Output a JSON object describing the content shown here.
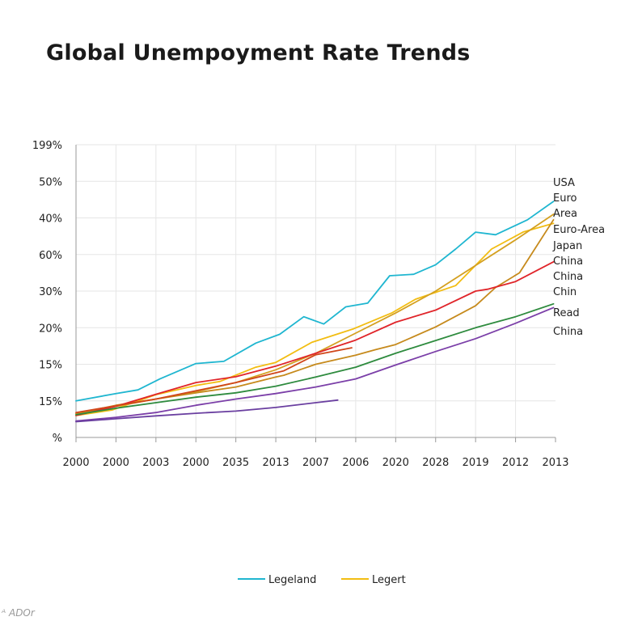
{
  "chart_data": {
    "type": "line",
    "title": "Global Unempoyment Rate Trends",
    "xlabel": "",
    "ylabel": "",
    "x_tick_labels": [
      "2000",
      "2000",
      "2003",
      "2000",
      "2035",
      "2013",
      "2007",
      "2006",
      "2020",
      "2028",
      "2019",
      "2012",
      "2013"
    ],
    "y_tick_labels": [
      "%",
      "15%",
      "15%",
      "20%",
      "30%",
      "60%",
      "40%",
      "50%",
      "199%"
    ],
    "grid": true,
    "legend_placement": "bottom-center",
    "legend": [
      {
        "label": "Legeland",
        "color": "#1fb6d0"
      },
      {
        "label": "Legert",
        "color": "#f2bd12"
      }
    ],
    "end_labels": [
      "USA",
      "Euro",
      "Area",
      "Euro-Area",
      "Japan",
      "China",
      "China",
      "Chin",
      "Read",
      "China"
    ],
    "series": [
      {
        "color": "#1fb6d0",
        "x": [
          0,
          1,
          1.55,
          2.1,
          3,
          3.7,
          4.5,
          5.1,
          5.7,
          6.2,
          6.75,
          7.3,
          7.85,
          8.45,
          9,
          9.5,
          10,
          10.5,
          11.3,
          11.95
        ],
        "y": [
          1.0,
          1.2,
          1.3,
          1.6,
          2.02,
          2.08,
          2.58,
          2.82,
          3.3,
          3.1,
          3.57,
          3.67,
          4.42,
          4.46,
          4.72,
          5.15,
          5.61,
          5.54,
          5.95,
          6.45
        ]
      },
      {
        "color": "#f2bd12",
        "x": [
          0,
          0.9,
          2,
          3,
          3.6,
          4.5,
          5,
          5.9,
          6.95,
          7.9,
          8.5,
          9.5,
          10.4,
          11.2,
          11.95
        ],
        "y": [
          0.6,
          0.75,
          1.17,
          1.42,
          1.53,
          1.92,
          2.05,
          2.6,
          2.97,
          3.4,
          3.78,
          4.15,
          5.15,
          5.62,
          5.85
        ]
      },
      {
        "color": "#d4a020",
        "x": [
          0,
          1,
          2,
          3,
          4,
          5,
          6,
          7,
          8,
          9,
          10,
          11,
          11.95
        ],
        "y": [
          0.65,
          0.85,
          1.05,
          1.25,
          1.5,
          1.85,
          2.3,
          2.85,
          3.4,
          4.0,
          4.7,
          5.4,
          6.1
        ]
      },
      {
        "color": "#c68a1c",
        "x": [
          0,
          1,
          2,
          3,
          4,
          5,
          5.2,
          5.6,
          6,
          7,
          7.5,
          8,
          9,
          10,
          10.5,
          11.1,
          11.95
        ],
        "y": [
          0.65,
          0.88,
          1.05,
          1.22,
          1.38,
          1.65,
          1.7,
          1.85,
          2.0,
          2.25,
          2.4,
          2.54,
          3.02,
          3.6,
          4.1,
          4.5,
          5.95
        ]
      },
      {
        "color": "#e0252a",
        "x": [
          0,
          1,
          2,
          3,
          4,
          5,
          6,
          7,
          8,
          9,
          10,
          10.3,
          11,
          11.95
        ],
        "y": [
          0.6,
          0.85,
          1.18,
          1.5,
          1.66,
          1.95,
          2.3,
          2.66,
          3.15,
          3.48,
          4.0,
          4.05,
          4.26,
          4.8
        ]
      },
      {
        "color": "#d0461a",
        "x": [
          0,
          2,
          4,
          5.2,
          6,
          6.9
        ],
        "y": [
          0.68,
          1.05,
          1.5,
          1.82,
          2.26,
          2.45
        ]
      },
      {
        "color": "#2e8b3e",
        "x": [
          0,
          1,
          2,
          3,
          4,
          5,
          6,
          7,
          8,
          9,
          10,
          11,
          11.95
        ],
        "y": [
          0.62,
          0.8,
          0.95,
          1.1,
          1.22,
          1.4,
          1.65,
          1.92,
          2.3,
          2.65,
          3.0,
          3.3,
          3.65
        ]
      },
      {
        "color": "#7b3fa8",
        "x": [
          0,
          1,
          2,
          3,
          4,
          5,
          6,
          7,
          8,
          9,
          10,
          11,
          11.95
        ],
        "y": [
          0.45,
          0.55,
          0.68,
          0.88,
          1.05,
          1.2,
          1.38,
          1.6,
          1.98,
          2.35,
          2.7,
          3.12,
          3.55
        ]
      },
      {
        "color": "#6a3fa0",
        "x": [
          0,
          1,
          2,
          3,
          4,
          5,
          6,
          6.55
        ],
        "y": [
          0.43,
          0.51,
          0.59,
          0.66,
          0.72,
          0.82,
          0.95,
          1.02
        ]
      }
    ]
  }
}
